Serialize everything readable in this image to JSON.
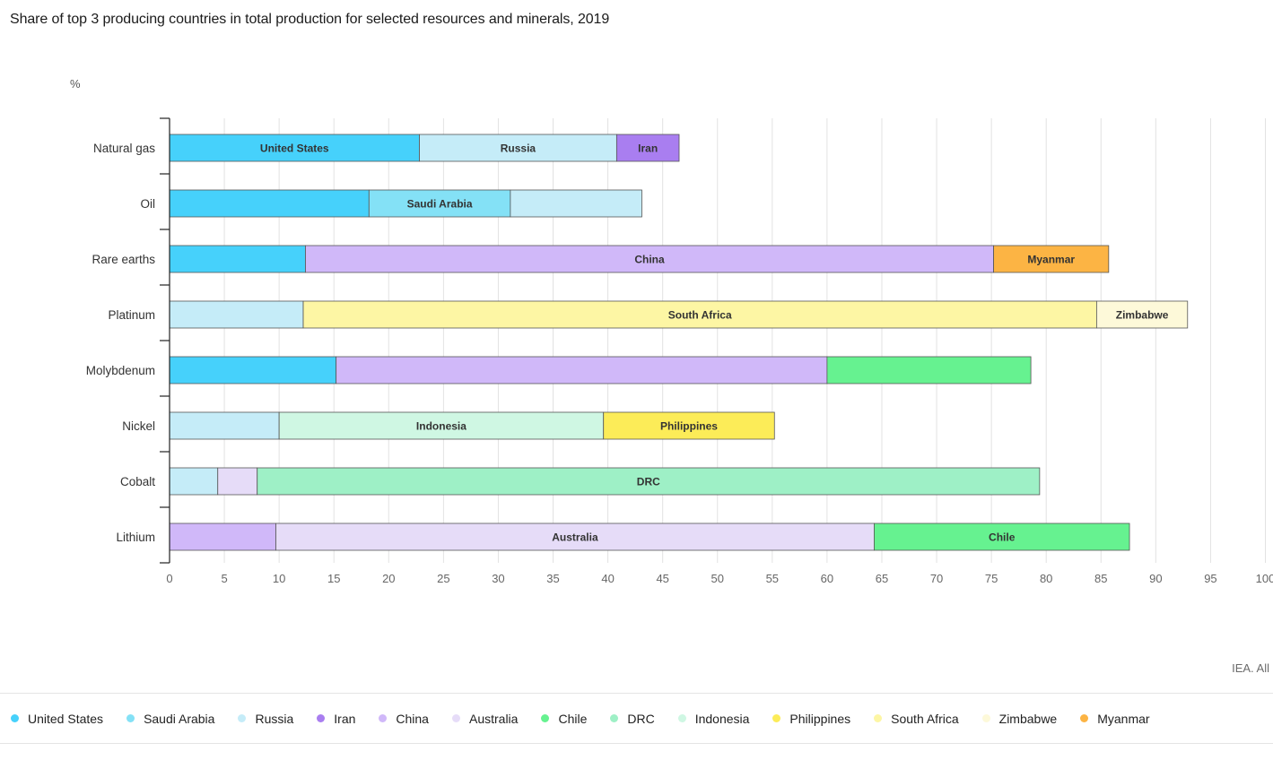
{
  "chart_data": {
    "type": "bar",
    "orientation": "horizontal",
    "stacked": true,
    "title": "Share of top 3 producing countries in total production for selected resources and minerals, 2019",
    "xlabel": "",
    "ylabel": "%",
    "xlim": [
      0,
      100
    ],
    "xticks": [
      "0",
      "5",
      "10",
      "15",
      "20",
      "25",
      "30",
      "35",
      "40",
      "45",
      "50",
      "55",
      "60",
      "65",
      "70",
      "75",
      "80",
      "85",
      "90",
      "95",
      "100"
    ],
    "grid": true,
    "legend_position": "bottom",
    "categories": [
      "Natural gas",
      "Oil",
      "Rare earths",
      "Platinum",
      "Molybdenum",
      "Nickel",
      "Cobalt",
      "Lithium"
    ],
    "rows": [
      {
        "category": "Natural gas",
        "segments": [
          {
            "country": "United States",
            "value": 22.8,
            "label": "United States"
          },
          {
            "country": "Russia",
            "value": 18.0,
            "label": "Russia"
          },
          {
            "country": "Iran",
            "value": 5.7,
            "label": "Iran"
          }
        ]
      },
      {
        "category": "Oil",
        "segments": [
          {
            "country": "United States",
            "value": 18.2,
            "label": ""
          },
          {
            "country": "Saudi Arabia",
            "value": 12.9,
            "label": "Saudi Arabia"
          },
          {
            "country": "Russia",
            "value": 12.0,
            "label": ""
          }
        ]
      },
      {
        "category": "Rare earths",
        "segments": [
          {
            "country": "United States",
            "value": 12.4,
            "label": ""
          },
          {
            "country": "China",
            "value": 62.8,
            "label": "China"
          },
          {
            "country": "Myanmar",
            "value": 10.5,
            "label": "Myanmar"
          }
        ]
      },
      {
        "category": "Platinum",
        "segments": [
          {
            "country": "Russia",
            "value": 12.2,
            "label": ""
          },
          {
            "country": "South Africa",
            "value": 72.4,
            "label": "South Africa"
          },
          {
            "country": "Zimbabwe",
            "value": 8.3,
            "label": "Zimbabwe"
          }
        ]
      },
      {
        "category": "Molybdenum",
        "segments": [
          {
            "country": "United States",
            "value": 15.2,
            "label": ""
          },
          {
            "country": "China",
            "value": 44.8,
            "label": ""
          },
          {
            "country": "Chile",
            "value": 18.6,
            "label": ""
          }
        ]
      },
      {
        "category": "Nickel",
        "segments": [
          {
            "country": "Russia",
            "value": 10.0,
            "label": ""
          },
          {
            "country": "Indonesia",
            "value": 29.6,
            "label": "Indonesia"
          },
          {
            "country": "Philippines",
            "value": 15.6,
            "label": "Philippines"
          }
        ]
      },
      {
        "category": "Cobalt",
        "segments": [
          {
            "country": "Russia",
            "value": 4.4,
            "label": ""
          },
          {
            "country": "Australia",
            "value": 3.6,
            "label": ""
          },
          {
            "country": "DRC",
            "value": 71.4,
            "label": "DRC"
          }
        ]
      },
      {
        "category": "Lithium",
        "segments": [
          {
            "country": "China",
            "value": 9.7,
            "label": ""
          },
          {
            "country": "Australia",
            "value": 54.6,
            "label": "Australia"
          },
          {
            "country": "Chile",
            "value": 23.3,
            "label": "Chile"
          }
        ]
      }
    ],
    "series": [
      {
        "name": "United States",
        "color": "#46d1fb"
      },
      {
        "name": "Saudi Arabia",
        "color": "#84e1f6"
      },
      {
        "name": "Russia",
        "color": "#c5ecf8"
      },
      {
        "name": "Iran",
        "color": "#a97ef0"
      },
      {
        "name": "China",
        "color": "#d0b8f9"
      },
      {
        "name": "Australia",
        "color": "#e6dcf8"
      },
      {
        "name": "Chile",
        "color": "#66f290"
      },
      {
        "name": "DRC",
        "color": "#9ef0c6"
      },
      {
        "name": "Indonesia",
        "color": "#cff7e3"
      },
      {
        "name": "Philippines",
        "color": "#fcec58"
      },
      {
        "name": "South Africa",
        "color": "#fdf6a4"
      },
      {
        "name": "Zimbabwe",
        "color": "#fdf9d9"
      },
      {
        "name": "Myanmar",
        "color": "#fcb444"
      }
    ]
  },
  "source": "IEA. All",
  "legend": [
    {
      "name": "United States",
      "color": "#46d1fb"
    },
    {
      "name": "Saudi Arabia",
      "color": "#84e1f6"
    },
    {
      "name": "Russia",
      "color": "#c5ecf8"
    },
    {
      "name": "Iran",
      "color": "#a97ef0"
    },
    {
      "name": "China",
      "color": "#d0b8f9"
    },
    {
      "name": "Australia",
      "color": "#e6dcf8"
    },
    {
      "name": "Chile",
      "color": "#66f290"
    },
    {
      "name": "DRC",
      "color": "#9ef0c6"
    },
    {
      "name": "Indonesia",
      "color": "#cff7e3"
    },
    {
      "name": "Philippines",
      "color": "#fcec58"
    },
    {
      "name": "South Africa",
      "color": "#fdf6a4"
    },
    {
      "name": "Zimbabwe",
      "color": "#fdf9d9"
    },
    {
      "name": "Myanmar",
      "color": "#fcb444"
    }
  ]
}
